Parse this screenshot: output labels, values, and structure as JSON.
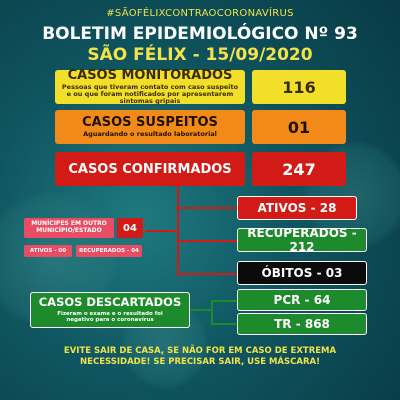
{
  "header": {
    "hashtag": "#SÃOFÉLIXCONTRAOCORONAVÍRUS",
    "title": "BOLETIM EPIDEMIOLÓGICO Nº 93",
    "subtitle": "SÃO FÉLIX - 15/09/2020"
  },
  "monitorados": {
    "label": "CASOS MONITORADOS",
    "note": "Pessoas que tiveram contato com caso suspeito e ou que foram notificados por apresentarem sintomas gripais",
    "value": "116"
  },
  "suspeitos": {
    "label": "CASOS SUSPEITOS",
    "note": "Aguardando o resultado laboratorial",
    "value": "01"
  },
  "confirmados": {
    "label": "CASOS CONFIRMADOS",
    "value": "247"
  },
  "breakdown": {
    "ativos": "ATIVOS - 28",
    "recuperados": "RECUPERADOS - 212",
    "obitos": "ÓBITOS - 03"
  },
  "outro_municipio": {
    "label": "MUNÍCIPES EM OUTRO MUNICÍPIO/ESTADO",
    "value": "04",
    "ativos": "ATIVOS - 00",
    "recuperados": "RECUPERADOS - 04"
  },
  "descartados": {
    "label": "CASOS DESCARTADOS",
    "note": "Fizeram o exame e o resultado foi negativo para o coronavírus",
    "pcr": "PCR - 64",
    "tr": "TR - 868"
  },
  "footer": {
    "line1": "EVITE SAIR DE CASA, SE NÃO FOR EM CASO DE EXTREMA",
    "line2": "NECESSIDADE! SE PRECISAR SAIR, USE MÁSCARA!"
  }
}
